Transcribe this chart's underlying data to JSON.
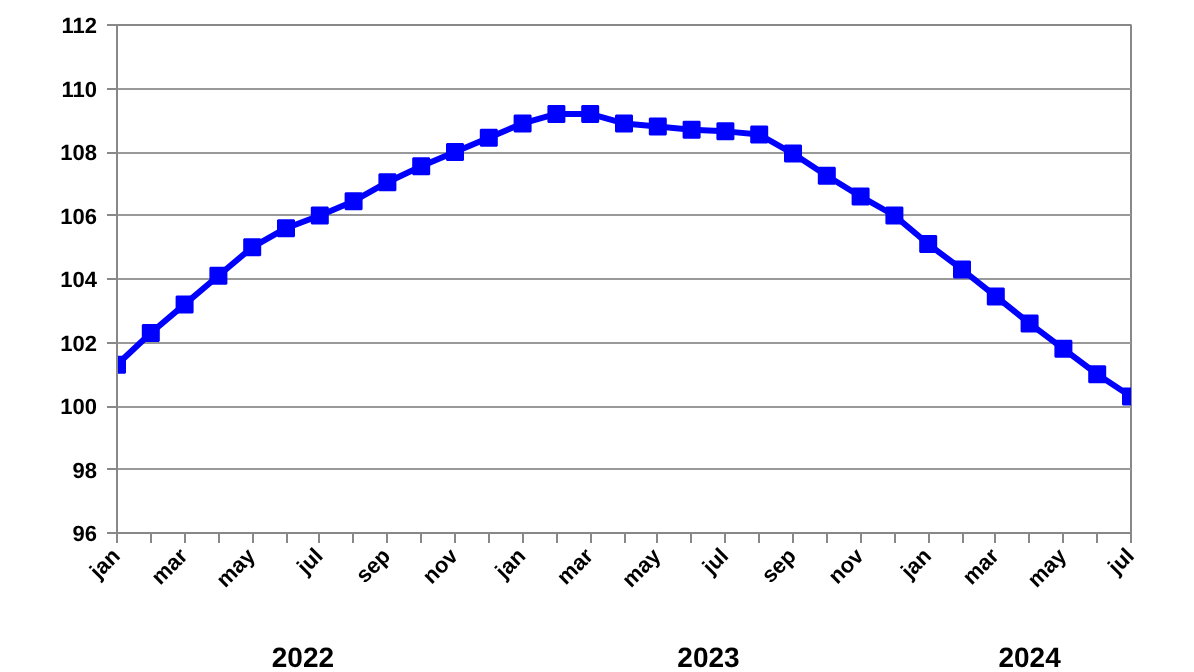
{
  "chart_data": {
    "type": "line",
    "categories": [
      "jan",
      null,
      "mar",
      null,
      "may",
      null,
      "jul",
      null,
      "sep",
      null,
      "nov",
      null,
      "jan",
      null,
      "mar",
      null,
      "may",
      null,
      "jul",
      null,
      "sep",
      null,
      "nov",
      null,
      "jan",
      null,
      "mar",
      null,
      "may",
      null,
      "jul"
    ],
    "series": [
      {
        "color": "#0000ff",
        "values": [
          101.3,
          102.3,
          103.2,
          104.1,
          105.0,
          105.6,
          106.0,
          106.45,
          107.05,
          107.55,
          108.0,
          108.45,
          108.9,
          109.2,
          109.2,
          108.9,
          108.8,
          108.7,
          108.65,
          108.55,
          107.95,
          107.25,
          106.6,
          106.0,
          105.1,
          104.3,
          103.45,
          102.6,
          101.8,
          101.0,
          100.3
        ]
      }
    ],
    "ylim": [
      96,
      112
    ],
    "yticks": [
      96,
      98,
      100,
      102,
      104,
      106,
      108,
      110,
      112
    ],
    "grid": "y",
    "marker": "square",
    "line_style": "solid",
    "annotations": [
      "2022",
      "2023",
      "2024"
    ]
  }
}
